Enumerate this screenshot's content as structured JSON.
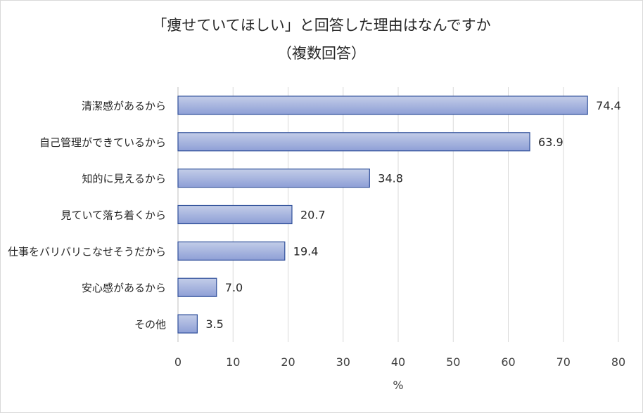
{
  "chart_data": {
    "type": "bar",
    "orientation": "horizontal",
    "title_line1": "「痩せていてほしい」と回答した理由はなんですか",
    "title_line2": "（複数回答）",
    "categories": [
      "清潔感があるから",
      "自己管理ができているから",
      "知的に見えるから",
      "見ていて落ち着くから",
      "仕事をバリバリこなせそうだから",
      "安心感があるから",
      "その他"
    ],
    "values": [
      74.4,
      63.9,
      34.8,
      20.7,
      19.4,
      7.0,
      3.5
    ],
    "value_labels": [
      "74.4",
      "63.9",
      "34.8",
      "20.7",
      "19.4",
      "7.0",
      "3.5"
    ],
    "xlim": [
      0,
      80
    ],
    "xticks": [
      0,
      10,
      20,
      30,
      40,
      50,
      60,
      70,
      80
    ],
    "xlabel": "%",
    "ylabel": "",
    "grid": true,
    "bar_fill_top": "#c3cde8",
    "bar_fill_bottom": "#8e9fd6",
    "bar_border": "#2f4f9a",
    "grid_color": "#d9d9d9"
  }
}
